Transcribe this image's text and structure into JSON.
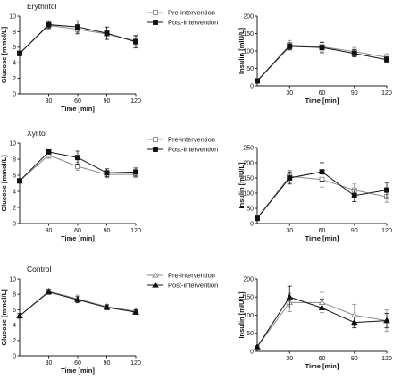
{
  "colors": {
    "pre": "#8a8a8a",
    "post": "#111111",
    "axis": "#222222",
    "background": "#ffffff"
  },
  "chart_data": [
    {
      "type": "line",
      "title": "Erythritol",
      "xlabel": "Time [min]",
      "ylabel": "Glucose [mmol/L]",
      "x": [
        0,
        30,
        60,
        90,
        120
      ],
      "xticks": [
        30,
        60,
        90,
        120
      ],
      "xlim": [
        0,
        120
      ],
      "ylim": [
        0,
        10
      ],
      "yticks": [
        0,
        2,
        4,
        6,
        8,
        10
      ],
      "legend": "right",
      "marker": "square",
      "series": [
        {
          "name": "Pre-intervention",
          "role": "pre",
          "values": [
            5.2,
            8.8,
            8.3,
            7.7,
            6.8
          ],
          "errors": [
            0.3,
            0.4,
            0.6,
            0.5,
            0.6
          ]
        },
        {
          "name": "Post-intervention",
          "role": "post",
          "values": [
            5.2,
            8.9,
            8.6,
            7.8,
            6.7
          ],
          "errors": [
            0.3,
            0.5,
            0.8,
            0.8,
            0.8
          ]
        }
      ]
    },
    {
      "type": "line",
      "title": "",
      "xlabel": "Time [min]",
      "ylabel": "Insulin [mIU/L]",
      "x": [
        0,
        30,
        60,
        90,
        120
      ],
      "xticks": [
        30,
        60,
        90,
        120
      ],
      "xlim": [
        0,
        120
      ],
      "ylim": [
        0,
        200
      ],
      "yticks": [
        0,
        50,
        100,
        150,
        200
      ],
      "marker": "square",
      "series": [
        {
          "name": "",
          "role": "pre",
          "values": [
            15,
            117,
            112,
            98,
            82
          ],
          "errors": [
            2,
            13,
            12,
            12,
            10
          ]
        },
        {
          "name": "",
          "role": "post",
          "values": [
            14,
            113,
            110,
            93,
            75
          ],
          "errors": [
            2,
            10,
            15,
            10,
            9
          ]
        }
      ]
    },
    {
      "type": "line",
      "title": "Xylitol",
      "xlabel": "Time [min]",
      "ylabel": "Glucose [mmol/L]",
      "x": [
        0,
        30,
        60,
        90,
        120
      ],
      "xticks": [
        30,
        60,
        90,
        120
      ],
      "xlim": [
        0,
        120
      ],
      "ylim": [
        0,
        10
      ],
      "yticks": [
        0,
        2,
        4,
        6,
        8,
        10
      ],
      "legend": "right",
      "marker": "square",
      "series": [
        {
          "name": "Pre-intervention",
          "role": "pre",
          "values": [
            5.3,
            8.5,
            7.1,
            6.1,
            6.1
          ],
          "errors": [
            0.2,
            0.4,
            0.5,
            0.4,
            0.4
          ]
        },
        {
          "name": "Post-intervention",
          "role": "post",
          "values": [
            5.3,
            8.9,
            8.2,
            6.3,
            6.4
          ],
          "errors": [
            0.2,
            0.2,
            0.8,
            0.5,
            0.5
          ]
        }
      ]
    },
    {
      "type": "line",
      "title": "",
      "xlabel": "Time [min]",
      "ylabel": "Insulin [mIU/L]",
      "x": [
        0,
        30,
        60,
        90,
        120
      ],
      "xticks": [
        30,
        60,
        90,
        120
      ],
      "xlim": [
        0,
        120
      ],
      "ylim": [
        0,
        250
      ],
      "yticks": [
        0,
        50,
        100,
        150,
        200,
        250
      ],
      "marker": "square",
      "series": [
        {
          "name": "",
          "role": "pre",
          "values": [
            18,
            155,
            145,
            110,
            88
          ],
          "errors": [
            3,
            20,
            25,
            20,
            18
          ]
        },
        {
          "name": "",
          "role": "post",
          "values": [
            17,
            150,
            170,
            92,
            110
          ],
          "errors": [
            3,
            20,
            30,
            20,
            25
          ]
        }
      ]
    },
    {
      "type": "line",
      "title": "Control",
      "xlabel": "Time [min]",
      "ylabel": "Glucose [mmol/L]",
      "x": [
        0,
        30,
        60,
        90,
        120
      ],
      "xticks": [
        30,
        60,
        90,
        120
      ],
      "xlim": [
        0,
        120
      ],
      "ylim": [
        0,
        10
      ],
      "yticks": [
        0,
        2,
        4,
        6,
        8,
        10
      ],
      "legend": "right",
      "marker": "triangle",
      "series": [
        {
          "name": "Pre-intervention",
          "role": "pre",
          "values": [
            5.2,
            8.4,
            7.4,
            6.4,
            5.8
          ],
          "errors": [
            0.3,
            0.3,
            0.5,
            0.3,
            0.2
          ]
        },
        {
          "name": "Post-intervention",
          "role": "post",
          "values": [
            5.2,
            8.3,
            7.3,
            6.3,
            5.7
          ],
          "errors": [
            0.3,
            0.3,
            0.4,
            0.3,
            0.3
          ]
        }
      ]
    },
    {
      "type": "line",
      "title": "",
      "xlabel": "Time [min]",
      "ylabel": "Insulin [mIU/L]",
      "x": [
        0,
        30,
        60,
        90,
        120
      ],
      "xticks": [
        30,
        60,
        90,
        120
      ],
      "xlim": [
        0,
        120
      ],
      "ylim": [
        0,
        200
      ],
      "yticks": [
        0,
        50,
        100,
        150,
        200
      ],
      "marker": "triangle",
      "series": [
        {
          "name": "",
          "role": "pre",
          "values": [
            12,
            135,
            135,
            100,
            85
          ],
          "errors": [
            3,
            25,
            28,
            30,
            30
          ]
        },
        {
          "name": "",
          "role": "post",
          "values": [
            12,
            150,
            120,
            80,
            85
          ],
          "errors": [
            3,
            30,
            25,
            15,
            20
          ]
        }
      ]
    }
  ]
}
